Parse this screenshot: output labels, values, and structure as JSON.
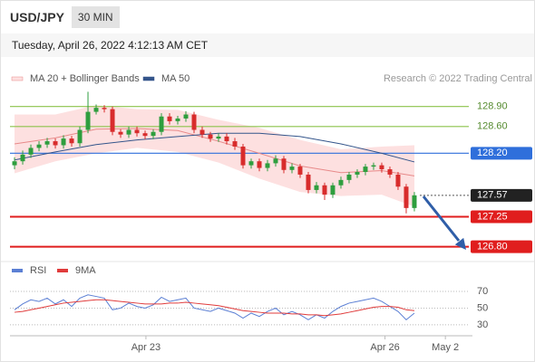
{
  "header": {
    "symbol": "USD/JPY",
    "interval": "30 MIN",
    "timestamp": "Tuesday, April 26, 2022 4:12:13 AM CET",
    "credit": "Research © 2022 Trading Central"
  },
  "chart_data": [
    {
      "type": "candlestick",
      "x": [
        0,
        1,
        2,
        3,
        4,
        5,
        6,
        7,
        8,
        9,
        10,
        11,
        12,
        13,
        14,
        15,
        16,
        17,
        18,
        19,
        20,
        21,
        22,
        23,
        24,
        25,
        26,
        27,
        28,
        29,
        30,
        31,
        32,
        33,
        34,
        35,
        36,
        37,
        38,
        39,
        40,
        41,
        42,
        43,
        44,
        45,
        46,
        47,
        48,
        49
      ],
      "open": [
        128.02,
        128.08,
        128.18,
        128.28,
        128.33,
        128.38,
        128.32,
        128.42,
        128.35,
        128.55,
        128.82,
        128.88,
        128.86,
        128.52,
        128.48,
        128.55,
        128.5,
        128.46,
        128.52,
        128.75,
        128.68,
        128.72,
        128.78,
        128.55,
        128.48,
        128.42,
        128.45,
        128.38,
        128.3,
        128.02,
        128.08,
        127.98,
        128.05,
        128.12,
        127.95,
        128.0,
        127.88,
        127.65,
        127.72,
        127.58,
        127.72,
        127.8,
        127.88,
        127.92,
        128.0,
        128.02,
        127.96,
        127.88,
        127.7,
        127.38
      ],
      "high": [
        128.14,
        128.24,
        128.33,
        128.38,
        128.43,
        128.42,
        128.47,
        128.46,
        128.6,
        129.12,
        128.93,
        128.92,
        128.9,
        128.56,
        128.6,
        128.6,
        128.54,
        128.56,
        128.8,
        128.8,
        128.76,
        128.83,
        128.82,
        128.6,
        128.52,
        128.5,
        128.5,
        128.43,
        128.34,
        128.12,
        128.12,
        128.1,
        128.17,
        128.16,
        128.05,
        128.04,
        127.92,
        127.77,
        127.76,
        127.76,
        127.85,
        127.92,
        127.96,
        128.04,
        128.06,
        128.06,
        128.0,
        127.92,
        127.74,
        127.62
      ],
      "low": [
        127.96,
        128.03,
        128.13,
        128.23,
        128.28,
        128.27,
        128.27,
        128.3,
        128.3,
        128.5,
        128.78,
        128.81,
        128.47,
        128.43,
        128.43,
        128.45,
        128.41,
        128.41,
        128.47,
        128.63,
        128.63,
        128.67,
        128.5,
        128.43,
        128.37,
        128.37,
        128.33,
        128.25,
        127.97,
        127.97,
        127.93,
        127.93,
        128.0,
        127.9,
        127.9,
        127.83,
        127.6,
        127.6,
        127.5,
        127.53,
        127.67,
        127.75,
        127.83,
        127.87,
        127.95,
        127.91,
        127.83,
        127.65,
        127.3,
        127.33
      ],
      "close": [
        128.08,
        128.18,
        128.28,
        128.33,
        128.38,
        128.32,
        128.42,
        128.35,
        128.55,
        128.82,
        128.88,
        128.86,
        128.52,
        128.48,
        128.55,
        128.5,
        128.46,
        128.52,
        128.75,
        128.68,
        128.72,
        128.78,
        128.55,
        128.48,
        128.42,
        128.45,
        128.38,
        128.3,
        128.02,
        128.08,
        127.98,
        128.05,
        128.12,
        127.95,
        128.0,
        127.88,
        127.65,
        127.72,
        127.58,
        127.72,
        127.8,
        127.88,
        127.92,
        128.0,
        128.02,
        127.96,
        127.88,
        127.7,
        127.38,
        127.57
      ],
      "up_color": "#2e9e3e",
      "down_color": "#d82c2c",
      "xlim": [
        -0.56,
        56.56
      ],
      "ylim": [
        126.66,
        129.18
      ],
      "xticks": [
        {
          "value": 16.1,
          "label": "Apr 23"
        },
        {
          "value": 45.4,
          "label": "Apr 26"
        },
        {
          "value": 52.8,
          "label": "May 2"
        }
      ],
      "series": [
        {
          "name": "MA 20 + Bollinger Bands",
          "color": "#e88a8a",
          "band_color": "#fde0e0",
          "x": [
            0,
            5,
            10,
            15,
            20,
            25,
            30,
            35,
            40,
            45,
            49
          ],
          "values": [
            128.34,
            128.43,
            128.56,
            128.57,
            128.54,
            128.38,
            128.2,
            128.01,
            127.91,
            127.94,
            127.86
          ],
          "upper": [
            128.78,
            128.78,
            128.92,
            128.86,
            128.85,
            128.7,
            128.58,
            128.4,
            128.26,
            128.3,
            128.32
          ],
          "lower": [
            127.9,
            128.08,
            128.2,
            128.28,
            128.22,
            128.06,
            127.82,
            127.62,
            127.56,
            127.58,
            127.4
          ]
        },
        {
          "name": "MA 50",
          "color": "#34558b",
          "x": [
            0,
            5,
            10,
            15,
            20,
            25,
            30,
            35,
            40,
            45,
            49
          ],
          "values": [
            128.1,
            128.22,
            128.33,
            128.4,
            128.45,
            128.5,
            128.5,
            128.45,
            128.34,
            128.2,
            128.07
          ]
        }
      ],
      "levels": [
        {
          "value": 128.9,
          "label": "128.90",
          "color": "#8bc34a",
          "style": "text",
          "line": "solid"
        },
        {
          "value": 128.6,
          "label": "128.60",
          "color": "#8bc34a",
          "style": "text",
          "line": "solid"
        },
        {
          "value": 128.2,
          "label": "128.20",
          "color": "#2f6fdb",
          "style": "box",
          "line": "solid"
        },
        {
          "value": 127.57,
          "label": "127.57",
          "color": "#222222",
          "style": "box",
          "line": "dotted"
        },
        {
          "value": 127.25,
          "label": "127.25",
          "color": "#e01e1e",
          "style": "box",
          "line": "solid"
        },
        {
          "value": 126.8,
          "label": "126.80",
          "color": "#e01e1e",
          "style": "box",
          "line": "solid"
        }
      ]
    },
    {
      "type": "line",
      "ylim": [
        19,
        82
      ],
      "yticks": [
        30,
        50,
        70
      ],
      "series": [
        {
          "name": "RSI",
          "color": "#5b7fd4",
          "values": [
            48,
            55,
            60,
            58,
            62,
            55,
            60,
            52,
            62,
            66,
            64,
            62,
            48,
            50,
            56,
            52,
            50,
            54,
            63,
            58,
            60,
            62,
            50,
            48,
            46,
            50,
            47,
            44,
            38,
            44,
            40,
            46,
            50,
            42,
            46,
            42,
            36,
            42,
            38,
            46,
            52,
            56,
            58,
            60,
            62,
            58,
            52,
            46,
            36,
            44
          ]
        },
        {
          "name": "9MA",
          "color": "#e03b3b",
          "values": [
            45,
            46,
            48,
            50,
            52,
            54,
            56,
            57,
            58,
            59,
            60,
            60,
            59,
            58,
            57,
            56,
            55,
            55,
            55,
            56,
            56,
            57,
            56,
            55,
            54,
            53,
            51,
            49,
            47,
            46,
            45,
            44,
            44,
            44,
            43,
            43,
            42,
            42,
            41,
            42,
            43,
            45,
            47,
            49,
            51,
            52,
            52,
            51,
            48,
            47
          ]
        }
      ]
    }
  ]
}
